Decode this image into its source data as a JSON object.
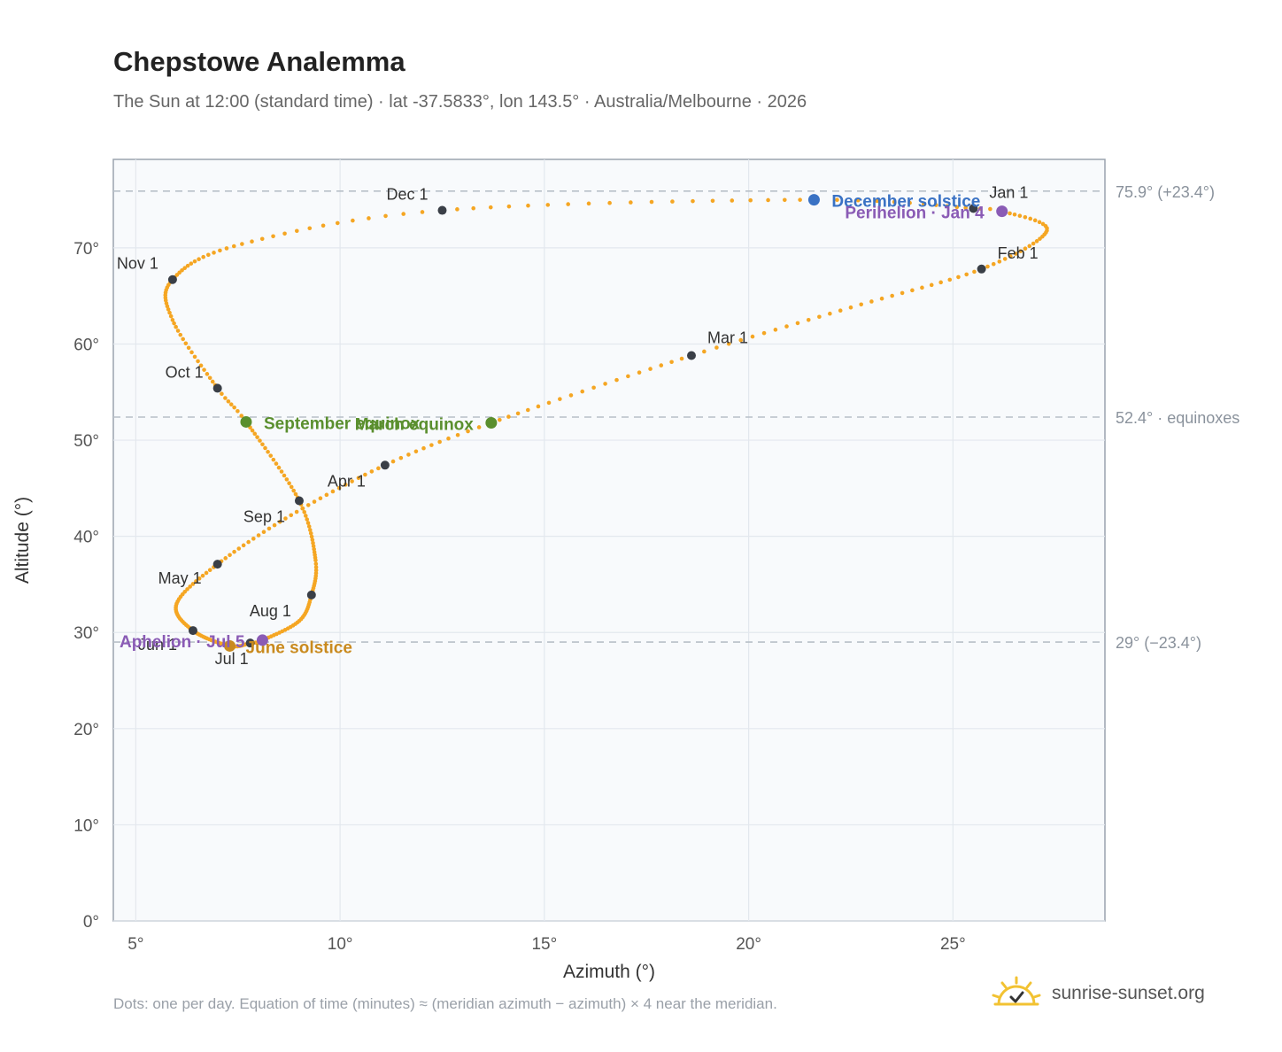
{
  "header": {
    "title": "Chepstowe Analemma",
    "subtitle": "The Sun at 12:00 (standard time) · lat -37.5833°, lon 143.5° · Australia/Melbourne · 2026"
  },
  "footer": {
    "note": "Dots: one per day. Equation of time (minutes) ≈ (meridian azimuth − azimuth) × 4 near the meridian.",
    "brand": "sunrise-sunset.org"
  },
  "colors": {
    "curve": "#f5a623",
    "month_marker": "#3a3f47",
    "december_solstice": "#3a72c4",
    "june_solstice": "#c98a1e",
    "equinox": "#5a8f2e",
    "apsis": "#8a5bb5",
    "reference_line": "#b8c0c8",
    "plot_bg": "#f8fafc"
  },
  "chart_data": {
    "type": "scatter",
    "title": "Chepstowe Analemma",
    "xlabel": "Azimuth (°)",
    "ylabel": "Altitude (°)",
    "xlim": [
      4.45,
      28.72
    ],
    "ylim": [
      0,
      79.2
    ],
    "xticks": [
      5,
      10,
      15,
      20,
      25
    ],
    "xtick_labels": [
      "5°",
      "10°",
      "15°",
      "20°",
      "25°"
    ],
    "yticks": [
      0,
      10,
      20,
      30,
      40,
      50,
      60,
      70
    ],
    "ytick_labels": [
      "0°",
      "10°",
      "20°",
      "30°",
      "40°",
      "50°",
      "60°",
      "70°"
    ],
    "grid": true,
    "points_per_day": true,
    "reference_lines": [
      {
        "y": 75.9,
        "label": "75.9° (+23.4°)"
      },
      {
        "y": 52.4,
        "label": "52.4° · equinoxes"
      },
      {
        "y": 29.0,
        "label": "29° (−23.4°)"
      }
    ],
    "analemma_keypoints": [
      {
        "day": 0,
        "x": 25.5,
        "y": 74.1
      },
      {
        "day": 3,
        "x": 26.2,
        "y": 73.8
      },
      {
        "day": 15,
        "x": 27.3,
        "y": 71.8
      },
      {
        "day": 31,
        "x": 25.7,
        "y": 67.8
      },
      {
        "day": 45,
        "x": 22.5,
        "y": 63.8
      },
      {
        "day": 59,
        "x": 18.6,
        "y": 58.8
      },
      {
        "day": 78,
        "x": 13.7,
        "y": 51.8
      },
      {
        "day": 90,
        "x": 11.1,
        "y": 47.4
      },
      {
        "day": 105,
        "x": 8.8,
        "y": 42.2
      },
      {
        "day": 120,
        "x": 7.0,
        "y": 37.1
      },
      {
        "day": 135,
        "x": 6.0,
        "y": 33.0
      },
      {
        "day": 151,
        "x": 6.4,
        "y": 30.2
      },
      {
        "day": 171,
        "x": 7.3,
        "y": 28.6
      },
      {
        "day": 181,
        "x": 7.8,
        "y": 28.9
      },
      {
        "day": 185,
        "x": 8.1,
        "y": 29.2
      },
      {
        "day": 200,
        "x": 9.0,
        "y": 31.2
      },
      {
        "day": 212,
        "x": 9.3,
        "y": 33.9
      },
      {
        "day": 225,
        "x": 9.4,
        "y": 37.5
      },
      {
        "day": 243,
        "x": 9.0,
        "y": 43.7
      },
      {
        "day": 265,
        "x": 7.7,
        "y": 51.9
      },
      {
        "day": 273,
        "x": 7.0,
        "y": 55.4
      },
      {
        "day": 290,
        "x": 5.9,
        "y": 62.5
      },
      {
        "day": 304,
        "x": 5.9,
        "y": 66.7
      },
      {
        "day": 320,
        "x": 7.6,
        "y": 70.4
      },
      {
        "day": 334,
        "x": 12.5,
        "y": 73.9
      },
      {
        "day": 354,
        "x": 21.6,
        "y": 75.0
      },
      {
        "day": 365,
        "x": 25.5,
        "y": 74.1
      }
    ],
    "month_markers": [
      {
        "label": "Jan 1",
        "x": 25.5,
        "y": 74.1
      },
      {
        "label": "Feb 1",
        "x": 25.7,
        "y": 67.8
      },
      {
        "label": "Mar 1",
        "x": 18.6,
        "y": 58.8
      },
      {
        "label": "Apr 1",
        "x": 11.1,
        "y": 47.4
      },
      {
        "label": "May 1",
        "x": 7.0,
        "y": 37.1
      },
      {
        "label": "Jun 1",
        "x": 6.4,
        "y": 30.2
      },
      {
        "label": "Jul 1",
        "x": 7.8,
        "y": 28.9
      },
      {
        "label": "Aug 1",
        "x": 9.3,
        "y": 33.9
      },
      {
        "label": "Sep 1",
        "x": 9.0,
        "y": 43.7
      },
      {
        "label": "Oct 1",
        "x": 7.0,
        "y": 55.4
      },
      {
        "label": "Nov 1",
        "x": 5.9,
        "y": 66.7
      },
      {
        "label": "Dec 1",
        "x": 12.5,
        "y": 73.9
      }
    ],
    "events": [
      {
        "label": "December solstice",
        "x": 21.6,
        "y": 75.0,
        "kind": "december_solstice"
      },
      {
        "label": "Perihelion · Jan 4",
        "x": 26.2,
        "y": 73.8,
        "kind": "apsis"
      },
      {
        "label": "September equinox",
        "x": 7.7,
        "y": 51.9,
        "kind": "equinox"
      },
      {
        "label": "March equinox",
        "x": 13.7,
        "y": 51.8,
        "kind": "equinox"
      },
      {
        "label": "June solstice",
        "x": 7.3,
        "y": 28.6,
        "kind": "june_solstice"
      },
      {
        "label": "Aphelion · Jul 5",
        "x": 8.1,
        "y": 29.2,
        "kind": "apsis"
      }
    ]
  }
}
